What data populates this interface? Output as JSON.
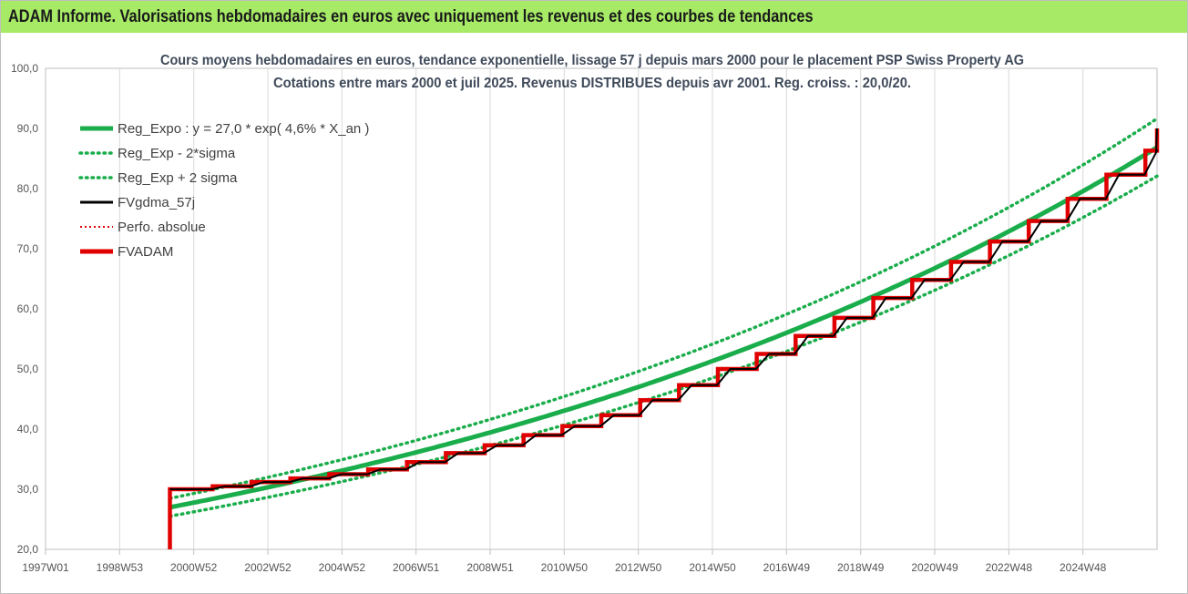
{
  "header": {
    "title": "ADAM Informe. Valorisations hebdomadaires en euros avec uniquement les revenus et des courbes de tendances"
  },
  "chart_data": {
    "type": "line",
    "title": "Cours moyens hebdomadaires en euros, tendance exponentielle, lissage 57 j depuis mars 2000 pour le placement PSP Swiss Property AG",
    "subtitle": "Cotations entre mars 2000 et juil 2025. Revenus DISTRIBUES depuis avr 2001. Reg. croiss. : 20,0/20.",
    "xlabel": "",
    "ylabel": "",
    "x_ticks": [
      "1997W01",
      "1998W53",
      "2000W52",
      "2002W52",
      "2004W52",
      "2006W51",
      "2008W51",
      "2010W50",
      "2012W50",
      "2014W50",
      "2016W49",
      "2018W49",
      "2020W49",
      "2022W48",
      "2024W48"
    ],
    "xlim": [
      1997.0,
      2025.6
    ],
    "ylim": [
      20,
      100
    ],
    "y_ticks": [
      "20,0",
      "30,0",
      "40,0",
      "50,0",
      "60,0",
      "70,0",
      "80,0",
      "90,0",
      "100,0"
    ],
    "grid": "vertical",
    "legend_position": "top-left",
    "regression": {
      "a": 27.0,
      "rate": 0.046,
      "start": 2000.2,
      "sigma_factor": 0.055
    },
    "series": [
      {
        "name": "Reg_Expo : y = 27,0 * exp( 4,6% *  X_an )",
        "style": "solid-thick",
        "color": "#1aad4b",
        "x": [
          2000.2,
          2025.6
        ],
        "y": [
          27.0,
          87.5
        ]
      },
      {
        "name": "Reg_Exp - 2*sigma",
        "style": "dotted",
        "color": "#1aad4b",
        "x": [
          2000.2,
          2025.6
        ],
        "y": [
          25.4,
          82.0
        ]
      },
      {
        "name": "Reg_Exp + 2 sigma",
        "style": "dotted",
        "color": "#1aad4b",
        "x": [
          2000.2,
          2025.6
        ],
        "y": [
          28.7,
          93.2
        ]
      },
      {
        "name": "FVgdma_57j",
        "style": "solid",
        "color": "#000000",
        "x": [
          2000.2,
          2025.6
        ],
        "y": [
          30.0,
          90.0
        ]
      },
      {
        "name": "Perfo. absolue",
        "style": "dotted",
        "color": "#e00000",
        "x": [
          2000.2,
          2025.6
        ],
        "y": [
          30.0,
          90.0
        ]
      },
      {
        "name": "FVADAM",
        "style": "steps-thick",
        "color": "#e00000",
        "x": [
          2000.2,
          2001.3,
          2002.3,
          2003.3,
          2004.3,
          2005.3,
          2006.3,
          2007.3,
          2008.3,
          2009.3,
          2010.3,
          2011.3,
          2012.3,
          2013.3,
          2014.3,
          2015.3,
          2016.3,
          2017.3,
          2018.3,
          2019.3,
          2020.3,
          2021.3,
          2022.3,
          2023.3,
          2024.3,
          2025.3,
          2025.6
        ],
        "y": [
          30.0,
          30.5,
          31.2,
          31.8,
          32.5,
          33.3,
          34.5,
          36.0,
          37.3,
          39.0,
          40.5,
          42.3,
          44.8,
          47.3,
          50.0,
          52.5,
          55.5,
          58.5,
          61.8,
          64.8,
          67.8,
          71.2,
          74.6,
          78.3,
          82.3,
          86.3,
          90.0
        ]
      }
    ]
  }
}
